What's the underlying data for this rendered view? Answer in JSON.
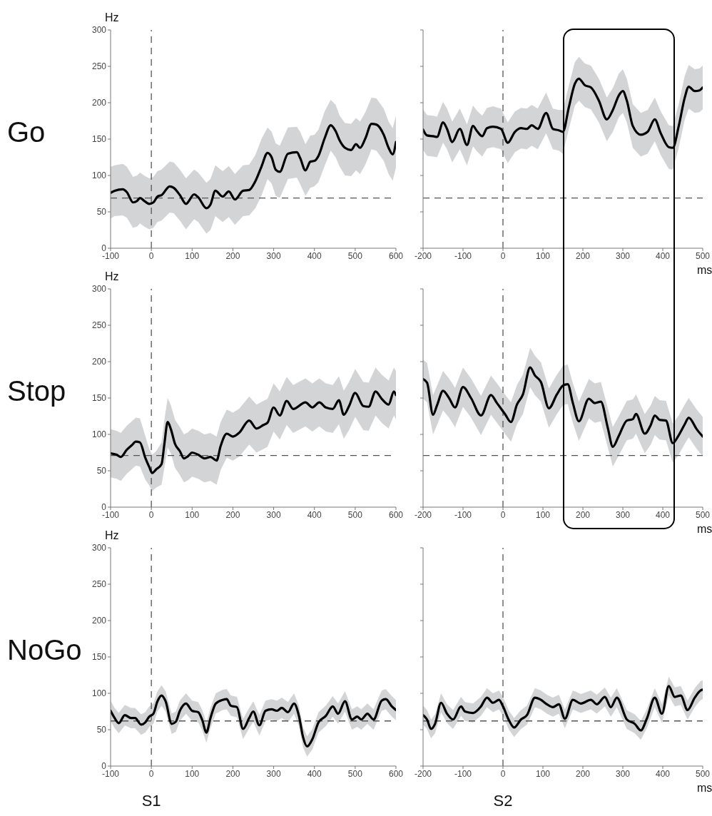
{
  "chart_data": [
    {
      "type": "line",
      "title": "Go",
      "ylabel": "Hz",
      "xlim": [
        -100,
        600
      ],
      "xticks": [
        -100,
        0,
        100,
        200,
        300,
        400,
        500,
        600
      ],
      "ylim": [
        0,
        300
      ],
      "yticks": [
        0,
        50,
        100,
        150,
        200,
        250,
        300
      ],
      "x": [
        -100,
        -90,
        -70,
        -60,
        -45,
        -35,
        -28,
        -15,
        -5,
        5,
        15,
        25,
        45,
        55,
        70,
        85,
        105,
        115,
        135,
        145,
        157,
        175,
        190,
        205,
        225,
        240,
        255,
        270,
        285,
        295,
        305,
        315,
        335,
        357,
        365,
        378,
        390,
        400,
        410,
        425,
        440,
        452,
        462,
        475,
        490,
        502,
        512,
        525,
        540,
        552,
        570,
        582,
        592,
        600
      ],
      "series": [
        {
          "color": "#000000",
          "values": [
            76,
            79,
            81,
            77,
            63,
            65,
            69,
            64,
            61,
            63,
            71,
            73,
            85,
            83,
            73,
            61,
            74,
            70,
            55,
            60,
            79,
            71,
            78,
            67,
            79,
            80,
            92,
            112,
            131,
            125,
            108,
            105,
            130,
            132,
            124,
            107,
            119,
            120,
            127,
            151,
            169,
            161,
            148,
            138,
            135,
            143,
            138,
            151,
            171,
            170,
            156,
            138,
            129,
            146
          ],
          "lower": [
            41,
            44,
            45,
            42,
            28,
            30,
            34,
            29,
            26,
            28,
            36,
            38,
            49,
            48,
            38,
            26,
            40,
            36,
            20,
            25,
            44,
            36,
            43,
            32,
            44,
            45,
            55,
            72,
            95,
            89,
            72,
            69,
            95,
            97,
            88,
            72,
            83,
            85,
            91,
            113,
            134,
            125,
            112,
            100,
            99,
            107,
            102,
            115,
            136,
            134,
            120,
            102,
            93,
            111
          ],
          "upper": [
            112,
            114,
            116,
            112,
            98,
            100,
            104,
            99,
            96,
            98,
            106,
            108,
            119,
            118,
            108,
            96,
            108,
            104,
            90,
            95,
            114,
            106,
            113,
            102,
            114,
            115,
            128,
            150,
            166,
            160,
            144,
            141,
            166,
            167,
            160,
            143,
            155,
            156,
            163,
            188,
            204,
            197,
            182,
            172,
            171,
            179,
            174,
            187,
            207,
            206,
            192,
            174,
            165,
            182
          ]
        }
      ],
      "ref_lines": [
        {
          "axis": "x",
          "value": 0,
          "color": "#555555",
          "line_style": "dashed"
        },
        {
          "axis": "y",
          "value": 69,
          "color": "#555555",
          "line_style": "dashed"
        }
      ]
    },
    {
      "type": "line",
      "xlabel": "ms",
      "tick_labels": "x",
      "xlim": [
        -200,
        500
      ],
      "xticks": [
        -200,
        -100,
        0,
        100,
        200,
        300,
        400,
        500
      ],
      "ylim": [
        0,
        300
      ],
      "yticks": [
        0,
        50,
        100,
        150,
        200,
        250,
        300
      ],
      "x": [
        -200,
        -190,
        -175,
        -165,
        -150,
        -140,
        -127,
        -108,
        -90,
        -75,
        -65,
        -52,
        -40,
        -25,
        -5,
        12,
        30,
        45,
        60,
        72,
        87,
        108,
        125,
        140,
        150,
        165,
        180,
        190,
        205,
        220,
        240,
        260,
        275,
        290,
        300,
        310,
        325,
        345,
        362,
        380,
        395,
        415,
        425,
        440,
        455,
        465,
        480,
        492,
        500
      ],
      "series": [
        {
          "color": "#000000",
          "values": [
            163,
            155,
            154,
            153,
            173,
            164,
            146,
            164,
            142,
            168,
            161,
            154,
            165,
            167,
            164,
            145,
            160,
            165,
            164,
            169,
            164,
            186,
            164,
            162,
            160,
            194,
            226,
            233,
            224,
            221,
            203,
            177,
            190,
            210,
            216,
            203,
            168,
            156,
            160,
            177,
            158,
            139,
            138,
            168,
            207,
            222,
            216,
            217,
            221
          ],
          "lower": [
            135,
            127,
            126,
            125,
            145,
            136,
            118,
            136,
            114,
            140,
            133,
            126,
            137,
            139,
            136,
            117,
            132,
            137,
            136,
            141,
            136,
            158,
            136,
            134,
            130,
            164,
            196,
            203,
            194,
            191,
            173,
            147,
            160,
            180,
            186,
            173,
            138,
            126,
            130,
            147,
            128,
            109,
            108,
            138,
            177,
            192,
            186,
            187,
            191
          ],
          "upper": [
            191,
            183,
            182,
            181,
            201,
            192,
            174,
            192,
            170,
            196,
            189,
            182,
            193,
            195,
            192,
            173,
            188,
            193,
            192,
            197,
            192,
            214,
            192,
            190,
            190,
            224,
            256,
            263,
            254,
            251,
            233,
            207,
            220,
            240,
            246,
            233,
            198,
            186,
            190,
            207,
            188,
            169,
            168,
            198,
            237,
            252,
            246,
            247,
            251
          ]
        }
      ],
      "ref_lines": [
        {
          "axis": "x",
          "value": 0,
          "color": "#555555",
          "line_style": "dashed"
        },
        {
          "axis": "y",
          "value": 69,
          "color": "#555555",
          "line_style": "dashed"
        }
      ]
    },
    {
      "type": "line",
      "title": "Stop",
      "ylabel": "Hz",
      "xlim": [
        -100,
        600
      ],
      "xticks": [
        -100,
        0,
        100,
        200,
        300,
        400,
        500,
        600
      ],
      "ylim": [
        0,
        300
      ],
      "yticks": [
        0,
        50,
        100,
        150,
        200,
        250,
        300
      ],
      "x": [
        -100,
        -85,
        -75,
        -60,
        -48,
        -38,
        -28,
        -15,
        -5,
        2,
        12,
        25,
        32,
        40,
        48,
        58,
        70,
        80,
        90,
        100,
        115,
        130,
        145,
        160,
        170,
        185,
        200,
        215,
        240,
        258,
        275,
        285,
        300,
        315,
        332,
        348,
        378,
        395,
        412,
        428,
        445,
        460,
        472,
        485,
        500,
        520,
        533,
        550,
        565,
        582,
        595,
        600
      ],
      "series": [
        {
          "color": "#000000",
          "values": [
            74,
            72,
            69,
            79,
            85,
            90,
            89,
            68,
            55,
            47,
            52,
            59,
            87,
            117,
            107,
            87,
            77,
            67,
            70,
            75,
            72,
            67,
            69,
            64,
            84,
            101,
            97,
            102,
            119,
            108,
            113,
            116,
            137,
            126,
            146,
            135,
            144,
            137,
            144,
            137,
            135,
            147,
            127,
            139,
            157,
            139,
            138,
            159,
            149,
            141,
            159,
            154
          ],
          "lower": [
            41,
            39,
            36,
            46,
            52,
            57,
            56,
            38,
            30,
            22,
            27,
            31,
            54,
            82,
            74,
            54,
            44,
            34,
            37,
            42,
            39,
            34,
            36,
            31,
            51,
            68,
            64,
            69,
            86,
            75,
            80,
            83,
            104,
            93,
            113,
            102,
            111,
            104,
            111,
            104,
            102,
            114,
            94,
            106,
            124,
            106,
            105,
            126,
            116,
            108,
            126,
            121
          ],
          "upper": [
            107,
            105,
            102,
            112,
            118,
            123,
            122,
            98,
            80,
            72,
            77,
            89,
            120,
            150,
            140,
            120,
            110,
            100,
            103,
            108,
            105,
            100,
            102,
            97,
            117,
            134,
            130,
            135,
            152,
            141,
            146,
            149,
            170,
            159,
            179,
            168,
            177,
            170,
            177,
            170,
            168,
            180,
            160,
            172,
            190,
            172,
            171,
            192,
            182,
            174,
            192,
            187
          ]
        }
      ],
      "ref_lines": [
        {
          "axis": "x",
          "value": 0,
          "color": "#555555",
          "line_style": "dashed"
        },
        {
          "axis": "y",
          "value": 71,
          "color": "#555555",
          "line_style": "dashed"
        }
      ]
    },
    {
      "type": "line",
      "xlabel": "ms",
      "tick_labels": "x",
      "xlim": [
        -200,
        500
      ],
      "xticks": [
        -200,
        -100,
        0,
        100,
        200,
        300,
        400,
        500
      ],
      "ylim": [
        0,
        300
      ],
      "yticks": [
        0,
        50,
        100,
        150,
        200,
        250,
        300
      ],
      "x": [
        -200,
        -190,
        -175,
        -165,
        -150,
        -135,
        -120,
        -100,
        -80,
        -55,
        -30,
        -15,
        5,
        20,
        35,
        50,
        68,
        80,
        95,
        115,
        135,
        150,
        162,
        175,
        190,
        215,
        230,
        245,
        262,
        275,
        290,
        310,
        325,
        333,
        355,
        370,
        380,
        392,
        408,
        425,
        440,
        455,
        465,
        485,
        500
      ],
      "series": [
        {
          "color": "#000000",
          "values": [
            176,
            171,
            127,
            140,
            160,
            150,
            137,
            165,
            150,
            126,
            154,
            143,
            128,
            117,
            141,
            155,
            192,
            181,
            172,
            136,
            155,
            167,
            169,
            143,
            118,
            149,
            143,
            145,
            110,
            83,
            98,
            119,
            121,
            128,
            101,
            113,
            126,
            120,
            119,
            88,
            99,
            114,
            123,
            107,
            97
          ],
          "lower": [
            149,
            144,
            100,
            113,
            133,
            123,
            110,
            138,
            123,
            99,
            127,
            116,
            101,
            90,
            114,
            128,
            165,
            154,
            145,
            109,
            128,
            140,
            142,
            116,
            91,
            122,
            116,
            118,
            83,
            56,
            71,
            92,
            94,
            101,
            74,
            86,
            99,
            93,
            92,
            61,
            72,
            87,
            96,
            80,
            70
          ],
          "upper": [
            203,
            198,
            154,
            167,
            187,
            177,
            164,
            192,
            177,
            153,
            181,
            170,
            155,
            144,
            168,
            182,
            219,
            208,
            199,
            163,
            182,
            194,
            196,
            170,
            145,
            176,
            170,
            172,
            137,
            110,
            125,
            146,
            148,
            155,
            128,
            140,
            153,
            147,
            146,
            115,
            126,
            141,
            150,
            134,
            124
          ]
        }
      ],
      "ref_lines": [
        {
          "axis": "x",
          "value": 0,
          "color": "#555555",
          "line_style": "dashed"
        },
        {
          "axis": "y",
          "value": 71,
          "color": "#555555",
          "line_style": "dashed"
        }
      ]
    },
    {
      "type": "line",
      "title": "NoGo",
      "ylabel": "Hz",
      "annotations": [
        "S1"
      ],
      "xlim": [
        -100,
        600
      ],
      "xticks": [
        -100,
        0,
        100,
        200,
        300,
        400,
        500,
        600
      ],
      "ylim": [
        0,
        300
      ],
      "yticks": [
        0,
        50,
        100,
        150,
        200,
        250,
        300
      ],
      "x": [
        -100,
        -90,
        -80,
        -65,
        -50,
        -40,
        -25,
        -15,
        -5,
        5,
        15,
        25,
        35,
        50,
        60,
        70,
        85,
        100,
        115,
        125,
        135,
        145,
        158,
        175,
        185,
        195,
        210,
        225,
        240,
        250,
        265,
        280,
        295,
        308,
        320,
        335,
        350,
        362,
        372,
        382,
        395,
        410,
        428,
        445,
        458,
        475,
        492,
        505,
        515,
        530,
        545,
        565,
        575,
        590,
        600
      ],
      "series": [
        {
          "color": "#000000",
          "values": [
            76,
            66,
            59,
            70,
            66,
            66,
            57,
            60,
            68,
            72,
            89,
            97,
            89,
            58,
            61,
            76,
            86,
            76,
            74,
            63,
            46,
            66,
            86,
            91,
            92,
            83,
            81,
            51,
            66,
            75,
            56,
            76,
            78,
            76,
            80,
            74,
            86,
            69,
            40,
            27,
            37,
            60,
            69,
            82,
            72,
            89,
            64,
            68,
            64,
            72,
            64,
            90,
            92,
            82,
            77
          ],
          "lower": [
            62,
            52,
            45,
            56,
            52,
            52,
            43,
            46,
            54,
            58,
            75,
            83,
            75,
            44,
            47,
            62,
            72,
            62,
            60,
            49,
            32,
            52,
            72,
            77,
            78,
            69,
            67,
            37,
            52,
            61,
            42,
            62,
            64,
            62,
            66,
            60,
            72,
            55,
            26,
            13,
            23,
            46,
            55,
            68,
            58,
            75,
            50,
            54,
            50,
            58,
            50,
            76,
            78,
            68,
            63
          ],
          "upper": [
            90,
            80,
            73,
            84,
            80,
            80,
            71,
            74,
            82,
            86,
            103,
            111,
            103,
            72,
            75,
            90,
            100,
            90,
            88,
            77,
            60,
            80,
            100,
            105,
            106,
            97,
            95,
            65,
            80,
            89,
            70,
            90,
            92,
            90,
            94,
            88,
            100,
            83,
            54,
            41,
            51,
            74,
            83,
            96,
            86,
            103,
            78,
            82,
            78,
            86,
            78,
            104,
            106,
            96,
            91
          ]
        }
      ],
      "ref_lines": [
        {
          "axis": "x",
          "value": 0,
          "color": "#555555",
          "line_style": "dashed"
        },
        {
          "axis": "y",
          "value": 62,
          "color": "#555555",
          "line_style": "dashed"
        }
      ]
    },
    {
      "type": "line",
      "xlabel": "ms",
      "annotations": [
        "S2"
      ],
      "tick_labels": "x",
      "xlim": [
        -200,
        500
      ],
      "xticks": [
        -200,
        -100,
        0,
        100,
        200,
        300,
        400,
        500
      ],
      "ylim": [
        0,
        300
      ],
      "yticks": [
        0,
        50,
        100,
        150,
        200,
        250,
        300
      ],
      "x": [
        -200,
        -190,
        -180,
        -170,
        -155,
        -140,
        -125,
        -105,
        -95,
        -75,
        -55,
        -40,
        -25,
        -10,
        0,
        15,
        28,
        45,
        60,
        80,
        95,
        110,
        125,
        140,
        155,
        175,
        195,
        220,
        235,
        255,
        270,
        285,
        310,
        330,
        345,
        360,
        380,
        398,
        415,
        430,
        445,
        462,
        480,
        495,
        500
      ],
      "series": [
        {
          "color": "#000000",
          "values": [
            70,
            64,
            51,
            58,
            87,
            72,
            64,
            82,
            75,
            73,
            82,
            94,
            87,
            91,
            82,
            63,
            53,
            64,
            70,
            94,
            91,
            85,
            81,
            85,
            65,
            91,
            86,
            91,
            85,
            95,
            81,
            94,
            64,
            58,
            49,
            65,
            94,
            72,
            110,
            95,
            97,
            77,
            94,
            104,
            105
          ],
          "lower": [
            57,
            51,
            38,
            45,
            74,
            59,
            51,
            69,
            62,
            60,
            69,
            81,
            74,
            78,
            69,
            50,
            40,
            51,
            57,
            81,
            78,
            72,
            68,
            72,
            52,
            78,
            73,
            78,
            72,
            82,
            68,
            81,
            51,
            45,
            36,
            52,
            81,
            59,
            97,
            82,
            84,
            64,
            81,
            91,
            92
          ],
          "upper": [
            83,
            77,
            64,
            71,
            100,
            85,
            77,
            95,
            88,
            86,
            95,
            107,
            100,
            104,
            95,
            76,
            66,
            77,
            83,
            107,
            104,
            98,
            94,
            98,
            78,
            104,
            99,
            104,
            98,
            108,
            94,
            107,
            77,
            71,
            62,
            78,
            107,
            85,
            123,
            108,
            110,
            90,
            107,
            117,
            118
          ]
        }
      ],
      "ref_lines": [
        {
          "axis": "x",
          "value": 0,
          "color": "#555555",
          "line_style": "dashed"
        },
        {
          "axis": "y",
          "value": 62,
          "color": "#555555",
          "line_style": "dashed"
        }
      ]
    }
  ]
}
